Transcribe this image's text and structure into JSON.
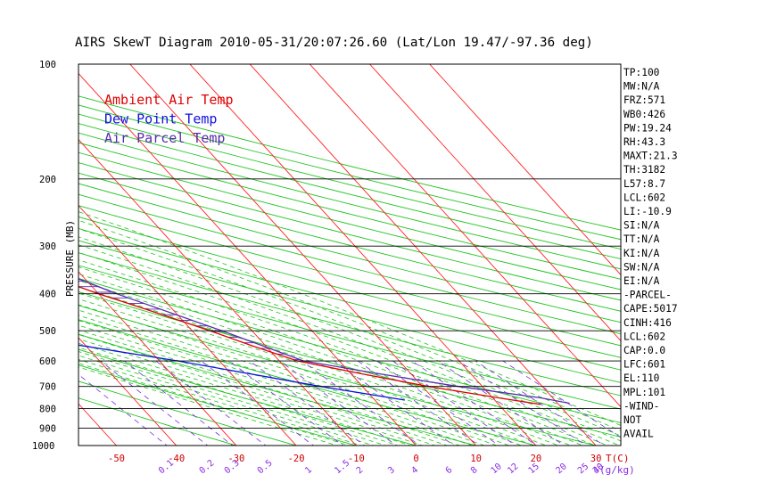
{
  "chart_data": {
    "type": "line",
    "title": "AIRS SkewT Diagram 2010-05-31/20:07:26.60 (Lat/Lon 19.47/-97.36 deg)",
    "ylabel": "PRESSURE (MB)",
    "xlabel": "T(C)",
    "mixing_ratio_unit": "(g/kg)",
    "ylim": [
      1000,
      100
    ],
    "xlim": [
      -55,
      37
    ],
    "y_scale": "log",
    "pressure_ticks": [
      100,
      200,
      300,
      400,
      500,
      600,
      700,
      800,
      900,
      1000
    ],
    "bottom_temp_ticks": [
      -50,
      -40,
      -30,
      -20,
      -10,
      0,
      10,
      20,
      30
    ],
    "top_temp_ticks": [
      -120,
      -110,
      -100,
      -90,
      -80,
      -70,
      -60,
      -50,
      -40
    ],
    "mixing_ratio_ticks": [
      "0.1",
      "0.2",
      "0.3",
      "0.5",
      "1",
      "1.5",
      "2",
      "3",
      "4",
      "6",
      "8",
      "10",
      "12",
      "15",
      "20",
      "25",
      "30",
      "40"
    ],
    "legend": [
      "Ambient Air Temp",
      "Dew Point Temp",
      "Air Parcel Temp"
    ],
    "legend_colors": [
      "#e00000",
      "#1010e0",
      "#5a2bb0"
    ],
    "series": [
      {
        "name": "Ambient Air Temp",
        "color": "#e00000",
        "points": [
          [
            100,
            -77
          ],
          [
            125,
            -76
          ],
          [
            150,
            -74
          ],
          [
            175,
            -73
          ],
          [
            200,
            -71
          ],
          [
            225,
            -64
          ],
          [
            250,
            -57
          ],
          [
            275,
            -52
          ],
          [
            300,
            -47
          ],
          [
            350,
            -37
          ],
          [
            400,
            -30
          ],
          [
            450,
            -23
          ],
          [
            500,
            -17
          ],
          [
            550,
            -12
          ],
          [
            600,
            -7
          ],
          [
            650,
            2
          ],
          [
            700,
            11
          ],
          [
            750,
            21
          ],
          [
            780,
            27
          ]
        ]
      },
      {
        "name": "Dew Point Temp",
        "color": "#1010e0",
        "points": [
          [
            100,
            -87
          ],
          [
            150,
            -92
          ],
          [
            200,
            -97
          ],
          [
            260,
            -101
          ],
          [
            300,
            -110
          ],
          [
            400,
            -89
          ],
          [
            500,
            -54
          ],
          [
            600,
            -27
          ],
          [
            700,
            -7
          ],
          [
            760,
            5
          ]
        ]
      },
      {
        "name": "Air Parcel Temp",
        "color": "#5a2bb0",
        "points": [
          [
            100,
            -78
          ],
          [
            125,
            -76
          ],
          [
            150,
            -69
          ],
          [
            175,
            -63
          ],
          [
            200,
            -57
          ],
          [
            250,
            -47
          ],
          [
            300,
            -40
          ],
          [
            350,
            -33
          ],
          [
            400,
            -27
          ],
          [
            500,
            -15
          ],
          [
            600,
            -6
          ],
          [
            650,
            5
          ],
          [
            700,
            16
          ],
          [
            750,
            28
          ],
          [
            775,
            32
          ]
        ]
      }
    ]
  },
  "indices": [
    "TP:100",
    "MW:N/A",
    "FRZ:571",
    "WB0:426",
    "PW:19.24",
    "RH:43.3",
    "MAXT:21.3",
    "TH:3182",
    "L57:8.7",
    "LCL:602",
    "LI:-10.9",
    "SI:N/A",
    "TT:N/A",
    "KI:N/A",
    "SW:N/A",
    "EI:N/A",
    "-PARCEL-",
    "CAPE:5017",
    "CINH:416",
    "LCL:602",
    "CAP:0.0",
    "LFC:601",
    "EL:110",
    "MPL:101",
    "-WIND-",
    "NOT",
    "AVAIL"
  ]
}
